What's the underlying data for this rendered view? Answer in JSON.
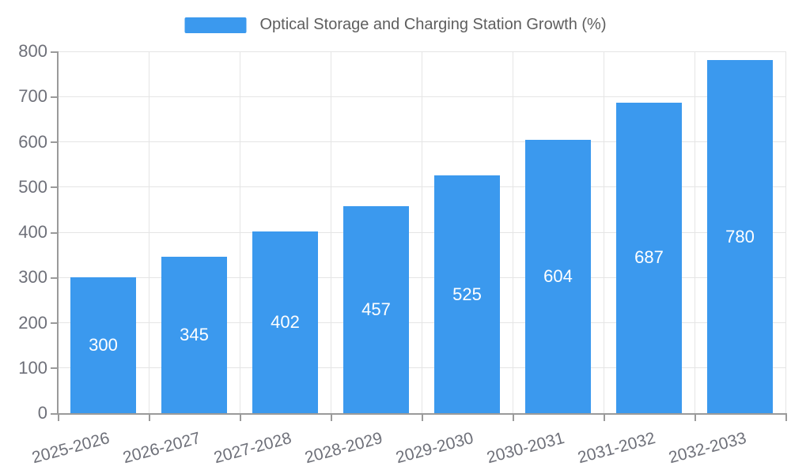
{
  "chart_data": {
    "type": "bar",
    "title": "Optical Storage and Charging Station Growth (%)",
    "categories": [
      "2025-2026",
      "2026-2027",
      "2027-2028",
      "2028-2029",
      "2029-2030",
      "2030-2031",
      "2031-2032",
      "2032-2033"
    ],
    "values": [
      300,
      345,
      402,
      457,
      525,
      604,
      687,
      780
    ],
    "data_labels": [
      "300",
      "345",
      "402",
      "457",
      "525",
      "604",
      "687",
      "780"
    ],
    "xlabel": "",
    "ylabel": "",
    "ylim": [
      0,
      800
    ],
    "yticks": [
      0,
      100,
      200,
      300,
      400,
      500,
      600,
      700,
      800
    ],
    "grid": true,
    "legend_position": "top-center",
    "x_label_rotation_deg": -15,
    "colors": {
      "bar": "#3B99EE",
      "bar_label_text": "#FFFFFF",
      "axis_line": "#9A9A9A",
      "gridline": "#E5E5E5",
      "tick_text": "#6E7079",
      "legend_text": "#5E5E5E",
      "background": "#FFFFFF"
    }
  }
}
